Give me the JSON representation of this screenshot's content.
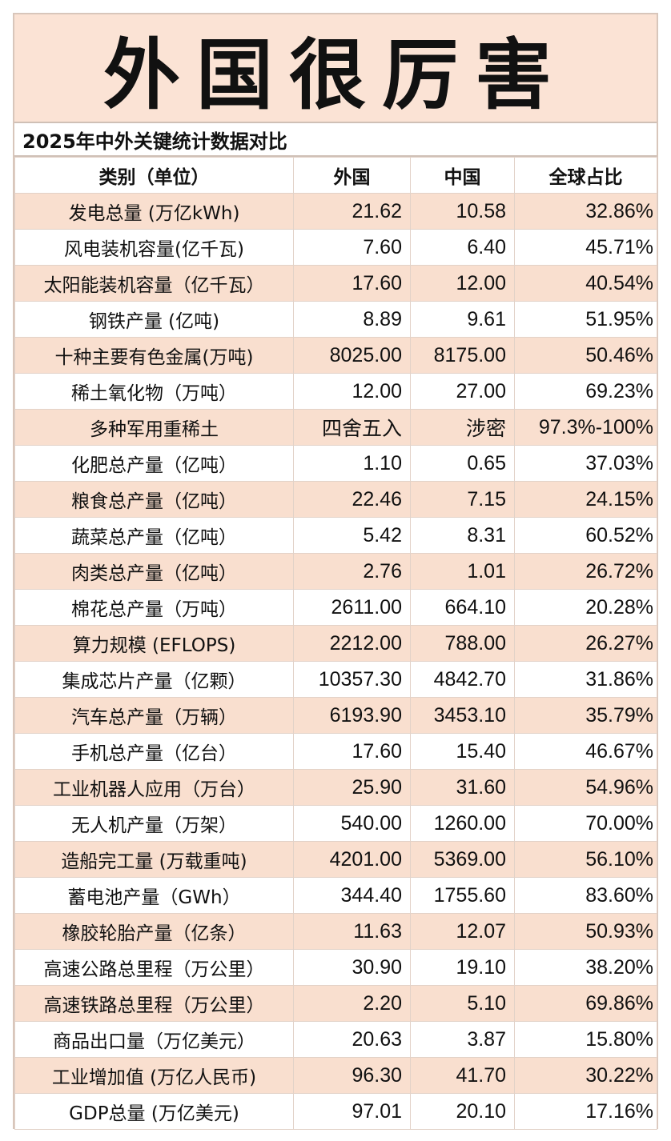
{
  "title": "外国很厉害",
  "subtitle": "2025年中外关键统计数据对比",
  "headers": [
    "类别（单位）",
    "外国",
    "中国",
    "全球占比"
  ],
  "rows": [
    {
      "category": "发电总量 (万亿kWh)",
      "foreign": "21.62",
      "china": "10.58",
      "share": "32.86%"
    },
    {
      "category": "风电装机容量(亿千瓦)",
      "foreign": "7.60",
      "china": "6.40",
      "share": "45.71%"
    },
    {
      "category": "太阳能装机容量（亿千瓦）",
      "foreign": "17.60",
      "china": "12.00",
      "share": "40.54%"
    },
    {
      "category": "钢铁产量 (亿吨)",
      "foreign": "8.89",
      "china": "9.61",
      "share": "51.95%"
    },
    {
      "category": "十种主要有色金属(万吨)",
      "foreign": "8025.00",
      "china": "8175.00",
      "share": "50.46%"
    },
    {
      "category": "稀土氧化物（万吨）",
      "foreign": "12.00",
      "china": "27.00",
      "share": "69.23%"
    },
    {
      "category": "多种军用重稀土",
      "foreign": "四舍五入",
      "china": "涉密",
      "share": "97.3%-100%"
    },
    {
      "category": "化肥总产量（亿吨）",
      "foreign": "1.10",
      "china": "0.65",
      "share": "37.03%"
    },
    {
      "category": "粮食总产量（亿吨）",
      "foreign": "22.46",
      "china": "7.15",
      "share": "24.15%"
    },
    {
      "category": "蔬菜总产量（亿吨）",
      "foreign": "5.42",
      "china": "8.31",
      "share": "60.52%"
    },
    {
      "category": "肉类总产量（亿吨）",
      "foreign": "2.76",
      "china": "1.01",
      "share": "26.72%"
    },
    {
      "category": "棉花总产量（万吨）",
      "foreign": "2611.00",
      "china": "664.10",
      "share": "20.28%"
    },
    {
      "category": "算力规模 (EFLOPS)",
      "foreign": "2212.00",
      "china": "788.00",
      "share": "26.27%"
    },
    {
      "category": "集成芯片产量（亿颗）",
      "foreign": "10357.30",
      "china": "4842.70",
      "share": "31.86%"
    },
    {
      "category": "汽车总产量（万辆）",
      "foreign": "6193.90",
      "china": "3453.10",
      "share": "35.79%"
    },
    {
      "category": "手机总产量（亿台）",
      "foreign": "17.60",
      "china": "15.40",
      "share": "46.67%"
    },
    {
      "category": "工业机器人应用（万台）",
      "foreign": "25.90",
      "china": "31.60",
      "share": "54.96%"
    },
    {
      "category": "无人机产量（万架）",
      "foreign": "540.00",
      "china": "1260.00",
      "share": "70.00%"
    },
    {
      "category": "造船完工量 (万载重吨)",
      "foreign": "4201.00",
      "china": "5369.00",
      "share": "56.10%"
    },
    {
      "category": "蓄电池产量（GWh）",
      "foreign": "344.40",
      "china": "1755.60",
      "share": "83.60%"
    },
    {
      "category": "橡胶轮胎产量（亿条）",
      "foreign": "11.63",
      "china": "12.07",
      "share": "50.93%"
    },
    {
      "category": "高速公路总里程（万公里）",
      "foreign": "30.90",
      "china": "19.10",
      "share": "38.20%"
    },
    {
      "category": "高速铁路总里程（万公里）",
      "foreign": "2.20",
      "china": "5.10",
      "share": "69.86%"
    },
    {
      "category": "商品出口量（万亿美元）",
      "foreign": "20.63",
      "china": "3.87",
      "share": "15.80%"
    },
    {
      "category": "工业增加值 (万亿人民币)",
      "foreign": "96.30",
      "china": "41.70",
      "share": "30.22%"
    },
    {
      "category": "GDP总量 (万亿美元)",
      "foreign": "97.01",
      "china": "20.10",
      "share": "17.16%"
    }
  ]
}
